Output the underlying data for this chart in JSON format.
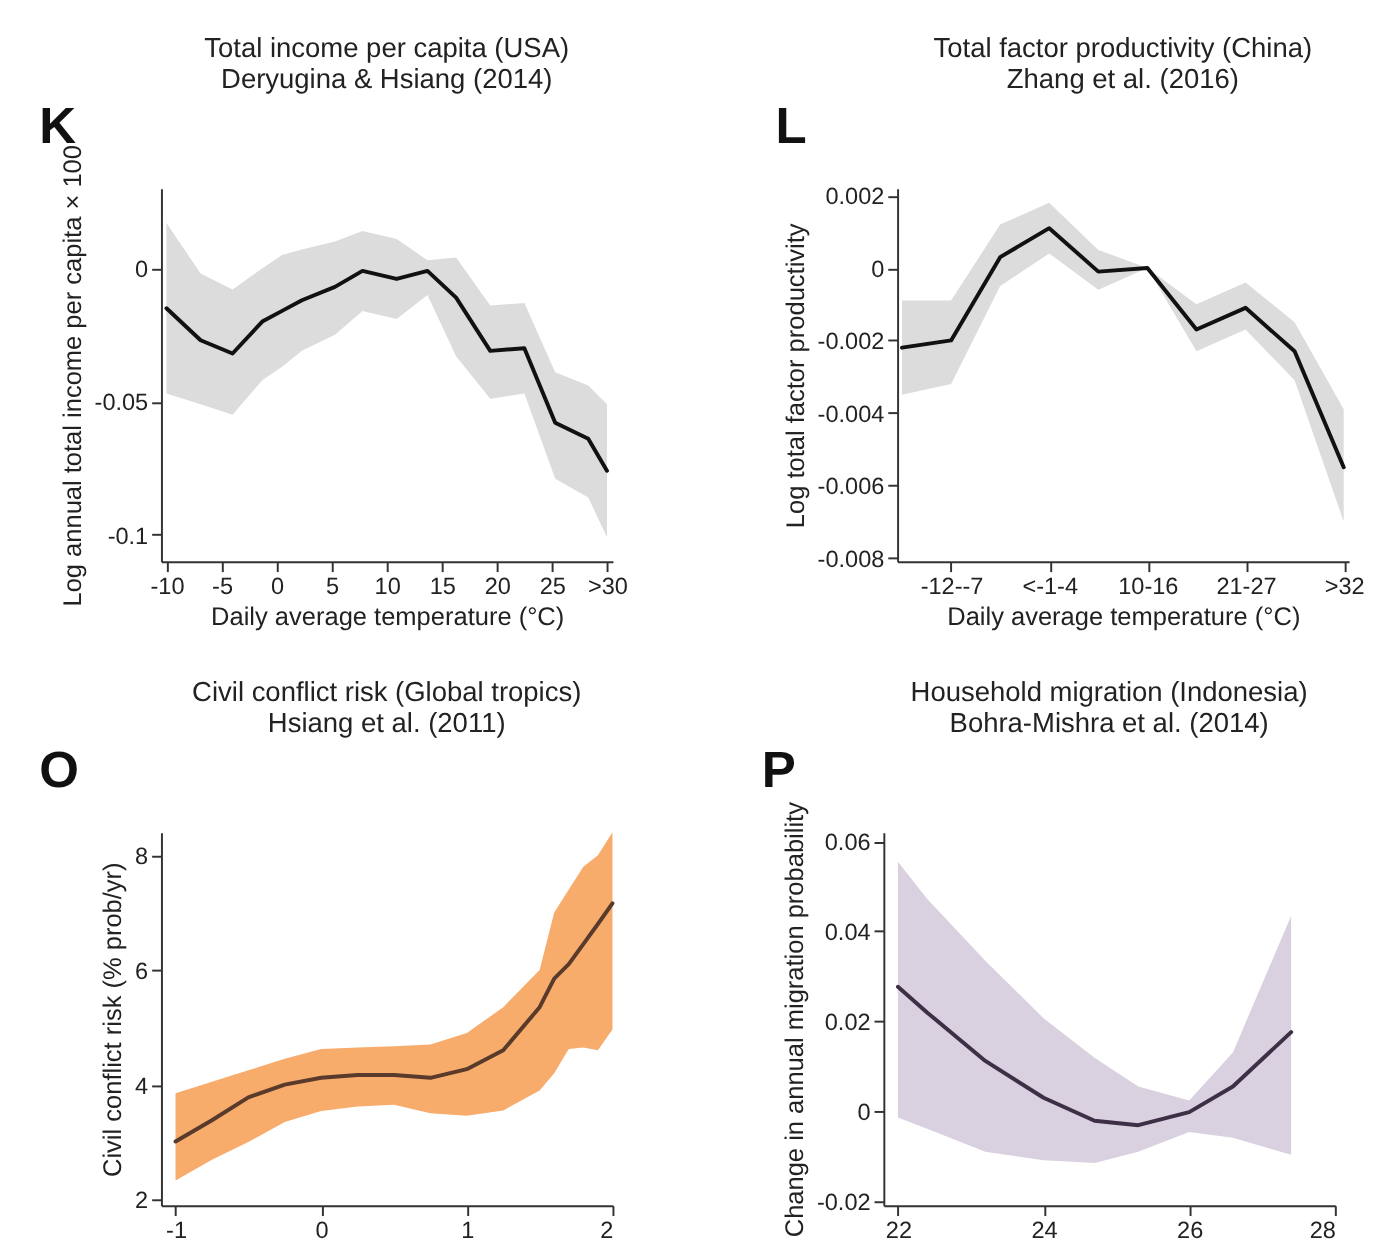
{
  "chart_data": [
    {
      "type": "line",
      "title": "Total income per capita (USA)",
      "subtitle": "Deryugina & Hsiang (2014)",
      "xlabel": "Daily average temperature (°C)",
      "ylabel": "Log annual total income per capita × 100",
      "annotations": [
        "K"
      ],
      "x": [
        -10,
        -6.9,
        -4.0,
        -1.3,
        0.5,
        2.3,
        5.3,
        7.8,
        10.9,
        13.7,
        16.3,
        19.4,
        22.5,
        25.3,
        28.3,
        30
      ],
      "colors": [
        "#dcdcdc"
      ],
      "series": [
        {
          "color": "#111111",
          "values": [
            -0.015,
            -0.027,
            -0.032,
            -0.02,
            -0.016,
            -0.012,
            -0.007,
            -0.001,
            -0.004,
            -0.001,
            -0.011,
            -0.031,
            -0.03,
            -0.058,
            -0.064,
            -0.076
          ],
          "upper": [
            0.017,
            -0.002,
            -0.008,
            0.0,
            0.005,
            0.007,
            0.01,
            0.014,
            0.011,
            0.003,
            0.004,
            -0.014,
            -0.013,
            -0.039,
            -0.044,
            -0.051
          ],
          "lower": [
            -0.047,
            -0.051,
            -0.055,
            -0.042,
            -0.037,
            -0.031,
            -0.025,
            -0.016,
            -0.019,
            -0.01,
            -0.033,
            -0.049,
            -0.047,
            -0.079,
            -0.086,
            -0.101
          ]
        }
      ],
      "xlim": [
        -10.5,
        30.5
      ],
      "ylim": [
        -0.11,
        0.03
      ],
      "xticks": [
        -10,
        -5,
        0,
        5,
        10,
        15,
        20,
        25,
        {
          "value": 30,
          "label": ">30"
        }
      ],
      "yticks": [
        -0.1,
        -0.05,
        0
      ],
      "grid": false,
      "legend": false
    },
    {
      "type": "line",
      "title": "Total factor productivity (China)",
      "subtitle": "Zhang et al. (2016)",
      "xlabel": "Daily average temperature (°C)",
      "ylabel": "Log total factor productivity",
      "annotations": [
        "L"
      ],
      "categories": [
        null,
        "-12--7",
        null,
        "<-1-4",
        null,
        "10-16",
        null,
        "21-27",
        null,
        ">32"
      ],
      "colors": [
        "#dcdcdc"
      ],
      "series": [
        {
          "color": "#111111",
          "values": [
            -0.0022,
            -0.002,
            0.0003,
            0.0011,
            -0.0001,
            0.0,
            -0.0017,
            -0.0011,
            -0.0023,
            -0.0055
          ],
          "upper": [
            -0.0009,
            -0.0009,
            0.0012,
            0.0018,
            0.0005,
            0.0,
            -0.001,
            -0.0004,
            -0.0015,
            -0.0039
          ],
          "lower": [
            -0.0035,
            -0.0032,
            -0.0005,
            0.0004,
            -0.0006,
            0.0,
            -0.0023,
            -0.0017,
            -0.0031,
            -0.007
          ]
        }
      ],
      "ylim": [
        -0.0081,
        0.0022
      ],
      "yticks": [
        -0.008,
        -0.006,
        -0.004,
        -0.002,
        0,
        0.002
      ],
      "grid": false,
      "legend": false
    },
    {
      "type": "line",
      "title": "Civil conflict risk (Global tropics)",
      "subtitle": "Hsiang et al. (2011)",
      "ylabel": "Civil conflict risk  (% prob/yr)",
      "annotations": [
        "O"
      ],
      "x": [
        -1,
        -0.75,
        -0.5,
        -0.25,
        0,
        0.25,
        0.5,
        0.75,
        1,
        1.25,
        1.5,
        1.6,
        1.7,
        1.8,
        1.9,
        2
      ],
      "colors": [
        "#f7ac6c"
      ],
      "series": [
        {
          "color": "#5a3a2a",
          "values": [
            3.01,
            3.38,
            3.78,
            4.0,
            4.12,
            4.17,
            4.17,
            4.12,
            4.27,
            4.6,
            5.35,
            5.85,
            6.1,
            6.45,
            6.8,
            7.16
          ],
          "upper": [
            3.85,
            4.05,
            4.25,
            4.45,
            4.62,
            4.65,
            4.67,
            4.7,
            4.9,
            5.35,
            6.0,
            7.0,
            7.4,
            7.8,
            8.0,
            8.4
          ],
          "lower": [
            2.33,
            2.69,
            3.0,
            3.35,
            3.54,
            3.62,
            3.65,
            3.5,
            3.46,
            3.55,
            3.9,
            4.2,
            4.62,
            4.65,
            4.6,
            4.96
          ]
        }
      ],
      "xlim": [
        -1.1,
        2
      ],
      "ylim": [
        1.9,
        8.4
      ],
      "xticks": [
        -1,
        0,
        1,
        2
      ],
      "yticks": [
        2,
        4,
        6,
        8
      ],
      "grid": false,
      "legend": false
    },
    {
      "type": "line",
      "title": "Household migration (Indonesia)",
      "subtitle": "Bohra-Mishra et al. (2014)",
      "ylabel": "Change in annual migration probability",
      "annotations": [
        "P"
      ],
      "x": [
        22,
        22.4,
        23.2,
        24,
        24.7,
        25.3,
        26,
        26.6,
        27.4
      ],
      "colors": [
        "#d9d1df"
      ],
      "series": [
        {
          "color": "#3d2f45",
          "values": [
            0.0276,
            0.0219,
            0.0111,
            0.0029,
            -0.0022,
            -0.0032,
            -0.0003,
            0.0054,
            0.0175
          ],
          "upper": [
            0.0554,
            0.0472,
            0.0334,
            0.0206,
            0.0118,
            0.0054,
            0.0023,
            0.013,
            0.0434
          ],
          "lower": [
            -0.0015,
            -0.004,
            -0.0091,
            -0.011,
            -0.0116,
            -0.0091,
            -0.0047,
            -0.006,
            -0.0098
          ]
        }
      ],
      "xlim": [
        21.8,
        28
      ],
      "ylim": [
        -0.021,
        0.062
      ],
      "xticks": [
        22,
        24,
        26,
        28
      ],
      "yticks": [
        -0.02,
        0,
        0.02,
        0.04,
        0.06
      ],
      "grid": false,
      "legend": false
    }
  ]
}
